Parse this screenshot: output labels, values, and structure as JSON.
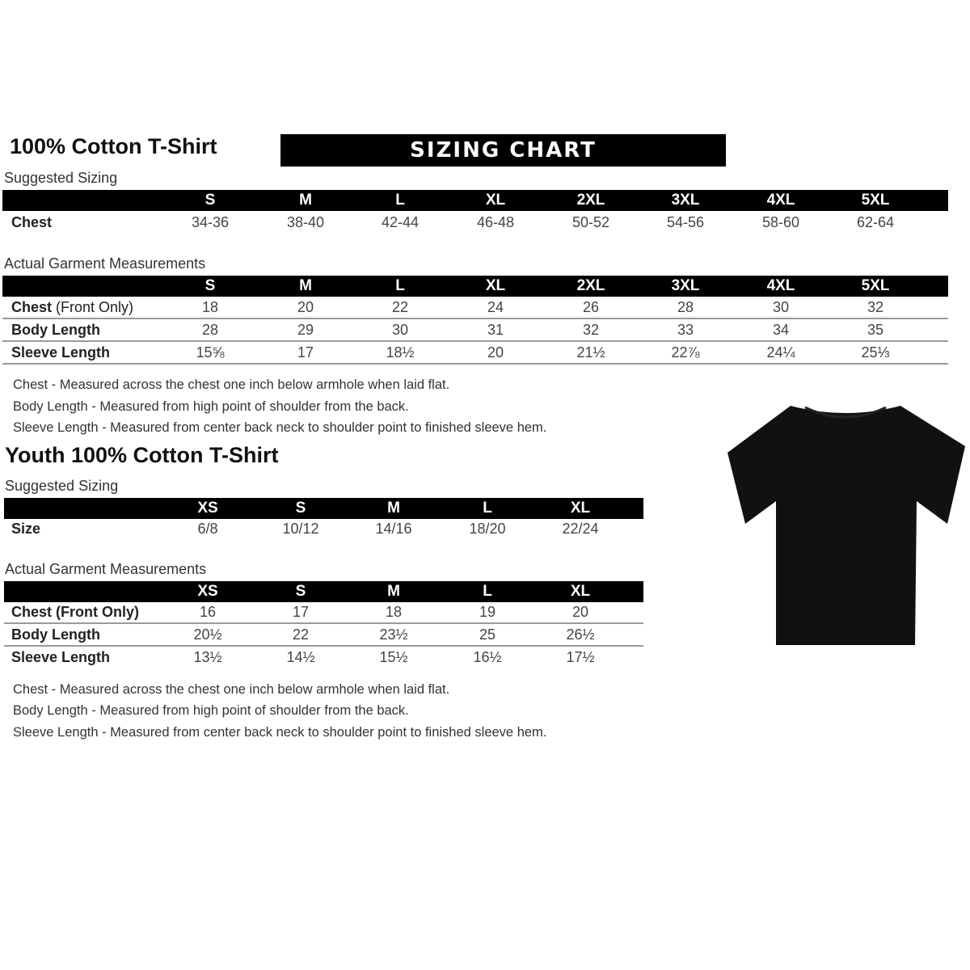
{
  "adult": {
    "title": "100% Cotton T-Shirt",
    "banner": "SIZING CHART",
    "suggested_label": "Suggested Sizing",
    "sizes": [
      "S",
      "M",
      "L",
      "XL",
      "2XL",
      "3XL",
      "4XL",
      "5XL"
    ],
    "suggested_rows": [
      {
        "label": "Chest",
        "values": [
          "34-36",
          "38-40",
          "42-44",
          "46-48",
          "50-52",
          "54-56",
          "58-60",
          "62-64"
        ]
      }
    ],
    "actual_label": "Actual Garment Measurements",
    "actual_rows": [
      {
        "label": "Chest",
        "label_extra": " (Front Only)",
        "values": [
          "18",
          "20",
          "22",
          "24",
          "26",
          "28",
          "30",
          "32"
        ]
      },
      {
        "label": "Body Length",
        "label_extra": "",
        "values": [
          "28",
          "29",
          "30",
          "31",
          "32",
          "33",
          "34",
          "35"
        ]
      },
      {
        "label": "Sleeve Length",
        "label_extra": "",
        "values": [
          "15⅝",
          "17",
          "18½",
          "20",
          "21½",
          "22⅞",
          "24¼",
          "25⅓"
        ]
      }
    ],
    "notes": [
      "Chest - Measured across the chest one inch below armhole when laid flat.",
      "Body Length - Measured from high point of shoulder from the back.",
      "Sleeve Length - Measured from center back neck to shoulder point to finished sleeve hem."
    ]
  },
  "youth": {
    "title": "Youth 100% Cotton T-Shirt",
    "suggested_label": "Suggested Sizing",
    "sizes": [
      "XS",
      "S",
      "M",
      "L",
      "XL"
    ],
    "suggested_rows": [
      {
        "label": "Size",
        "values": [
          "6/8",
          "10/12",
          "14/16",
          "18/20",
          "22/24"
        ]
      }
    ],
    "actual_label": "Actual Garment Measurements",
    "actual_rows": [
      {
        "label": "Chest (Front Only)",
        "values": [
          "16",
          "17",
          "18",
          "19",
          "20"
        ]
      },
      {
        "label": "Body Length",
        "values": [
          "20½",
          "22",
          "23½",
          "25",
          "26½"
        ]
      },
      {
        "label": "Sleeve Length",
        "values": [
          "13½",
          "14½",
          "15½",
          "16½",
          "17½"
        ]
      }
    ],
    "notes": [
      "Chest - Measured across the chest one inch below armhole when laid flat.",
      "Body Length - Measured from high point of shoulder from the back.",
      "Sleeve Length - Measured from center back neck to shoulder point to finished sleeve hem."
    ]
  },
  "image": {
    "icon": "black-tshirt-icon",
    "color": "#111111"
  }
}
